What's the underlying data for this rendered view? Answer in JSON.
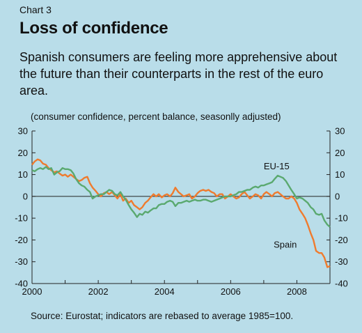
{
  "header": {
    "chart_number": "Chart 3",
    "title": "Loss of confidence",
    "subtitle": "Spanish consumers are feeling more apprehensive about the future than their counterparts in the rest of the euro area.",
    "units": "(consumer confidence, percent balance, seasonlly adjusted)"
  },
  "footer": {
    "source": "Source: Eurostat; indicators are rebased to average 1985=100."
  },
  "colors": {
    "background": "#b9dde9",
    "spain": "#ef7b2e",
    "eu15": "#5aa96f",
    "zero_line": "#222222"
  },
  "chart_data": {
    "type": "line",
    "title": "Loss of confidence",
    "xlabel": "",
    "ylabel": "",
    "xlim": [
      2000,
      2009
    ],
    "ylim": [
      -40,
      30
    ],
    "x_ticks": [
      2000,
      2002,
      2004,
      2006,
      2008
    ],
    "y_ticks": [
      30,
      20,
      10,
      0,
      -10,
      -20,
      -30,
      -40
    ],
    "grid": false,
    "legend": "inline labels",
    "series": [
      {
        "name": "Spain",
        "color": "#ef7b2e",
        "points": [
          [
            2000.0,
            14.5
          ],
          [
            2000.08,
            16
          ],
          [
            2000.17,
            17
          ],
          [
            2000.25,
            16.5
          ],
          [
            2000.33,
            15
          ],
          [
            2000.42,
            14.5
          ],
          [
            2000.5,
            13
          ],
          [
            2000.58,
            12
          ],
          [
            2000.67,
            11
          ],
          [
            2000.75,
            11.5
          ],
          [
            2000.83,
            10.5
          ],
          [
            2000.92,
            9.5
          ],
          [
            2001.0,
            10
          ],
          [
            2001.08,
            9
          ],
          [
            2001.17,
            10
          ],
          [
            2001.25,
            9
          ],
          [
            2001.33,
            8
          ],
          [
            2001.42,
            7
          ],
          [
            2001.5,
            7.5
          ],
          [
            2001.58,
            8.5
          ],
          [
            2001.67,
            9
          ],
          [
            2001.75,
            6
          ],
          [
            2001.83,
            4
          ],
          [
            2001.92,
            2.5
          ],
          [
            2002.0,
            1
          ],
          [
            2002.08,
            0
          ],
          [
            2002.17,
            1.5
          ],
          [
            2002.25,
            2
          ],
          [
            2002.33,
            1
          ],
          [
            2002.42,
            2
          ],
          [
            2002.5,
            0.5
          ],
          [
            2002.58,
            -1
          ],
          [
            2002.67,
            1
          ],
          [
            2002.75,
            -2
          ],
          [
            2002.83,
            -1
          ],
          [
            2002.92,
            -3
          ],
          [
            2003.0,
            -2
          ],
          [
            2003.08,
            -4
          ],
          [
            2003.17,
            -5
          ],
          [
            2003.25,
            -6
          ],
          [
            2003.33,
            -5
          ],
          [
            2003.42,
            -3
          ],
          [
            2003.5,
            -2
          ],
          [
            2003.58,
            -0.5
          ],
          [
            2003.67,
            1
          ],
          [
            2003.75,
            0
          ],
          [
            2003.83,
            1
          ],
          [
            2003.92,
            -0.5
          ],
          [
            2004.0,
            0.5
          ],
          [
            2004.08,
            1
          ],
          [
            2004.17,
            0
          ],
          [
            2004.25,
            1.5
          ],
          [
            2004.33,
            4
          ],
          [
            2004.42,
            2
          ],
          [
            2004.5,
            1
          ],
          [
            2004.58,
            0
          ],
          [
            2004.67,
            0.5
          ],
          [
            2004.75,
            1
          ],
          [
            2004.83,
            -1
          ],
          [
            2004.92,
            0
          ],
          [
            2005.0,
            1.5
          ],
          [
            2005.08,
            2.5
          ],
          [
            2005.17,
            3
          ],
          [
            2005.25,
            2.5
          ],
          [
            2005.33,
            3
          ],
          [
            2005.42,
            2
          ],
          [
            2005.5,
            1.5
          ],
          [
            2005.58,
            0
          ],
          [
            2005.67,
            1
          ],
          [
            2005.75,
            1
          ],
          [
            2005.83,
            -1
          ],
          [
            2005.92,
            0
          ],
          [
            2006.0,
            1
          ],
          [
            2006.08,
            0
          ],
          [
            2006.17,
            -1
          ],
          [
            2006.25,
            -0.5
          ],
          [
            2006.33,
            1
          ],
          [
            2006.42,
            2
          ],
          [
            2006.5,
            0.5
          ],
          [
            2006.58,
            -1
          ],
          [
            2006.67,
            0
          ],
          [
            2006.75,
            1
          ],
          [
            2006.83,
            0.5
          ],
          [
            2006.92,
            -1
          ],
          [
            2007.0,
            1
          ],
          [
            2007.08,
            2
          ],
          [
            2007.17,
            1
          ],
          [
            2007.25,
            0
          ],
          [
            2007.33,
            1.5
          ],
          [
            2007.42,
            2
          ],
          [
            2007.5,
            1
          ],
          [
            2007.58,
            0
          ],
          [
            2007.67,
            -1
          ],
          [
            2007.75,
            -1
          ],
          [
            2007.83,
            0
          ],
          [
            2007.92,
            -1
          ],
          [
            2008.0,
            -3
          ],
          [
            2008.08,
            -6
          ],
          [
            2008.17,
            -8
          ],
          [
            2008.25,
            -10
          ],
          [
            2008.33,
            -13
          ],
          [
            2008.42,
            -17
          ],
          [
            2008.5,
            -20
          ],
          [
            2008.58,
            -25
          ],
          [
            2008.67,
            -26
          ],
          [
            2008.75,
            -26
          ],
          [
            2008.83,
            -28
          ],
          [
            2008.92,
            -32.5
          ],
          [
            2009.0,
            -32
          ]
        ]
      },
      {
        "name": "EU-15",
        "color": "#5aa96f",
        "points": [
          [
            2000.0,
            12
          ],
          [
            2000.08,
            11.5
          ],
          [
            2000.17,
            12.5
          ],
          [
            2000.25,
            13
          ],
          [
            2000.33,
            12.5
          ],
          [
            2000.42,
            13.5
          ],
          [
            2000.5,
            12.5
          ],
          [
            2000.58,
            13
          ],
          [
            2000.67,
            10
          ],
          [
            2000.75,
            11
          ],
          [
            2000.83,
            11.5
          ],
          [
            2000.92,
            13
          ],
          [
            2001.0,
            12.5
          ],
          [
            2001.08,
            12.5
          ],
          [
            2001.17,
            12
          ],
          [
            2001.25,
            10.5
          ],
          [
            2001.33,
            8
          ],
          [
            2001.42,
            6
          ],
          [
            2001.5,
            5
          ],
          [
            2001.58,
            4.5
          ],
          [
            2001.67,
            3
          ],
          [
            2001.75,
            2
          ],
          [
            2001.83,
            -1
          ],
          [
            2001.92,
            0
          ],
          [
            2002.0,
            0.5
          ],
          [
            2002.08,
            1
          ],
          [
            2002.17,
            1
          ],
          [
            2002.25,
            2
          ],
          [
            2002.33,
            3
          ],
          [
            2002.42,
            2.5
          ],
          [
            2002.5,
            1
          ],
          [
            2002.58,
            0.5
          ],
          [
            2002.67,
            2
          ],
          [
            2002.75,
            0
          ],
          [
            2002.83,
            -1.5
          ],
          [
            2002.92,
            -4
          ],
          [
            2003.0,
            -6
          ],
          [
            2003.08,
            -7.5
          ],
          [
            2003.17,
            -9.5
          ],
          [
            2003.25,
            -8
          ],
          [
            2003.33,
            -8.5
          ],
          [
            2003.42,
            -7
          ],
          [
            2003.5,
            -7.5
          ],
          [
            2003.58,
            -6.5
          ],
          [
            2003.67,
            -5.5
          ],
          [
            2003.75,
            -5.5
          ],
          [
            2003.83,
            -4
          ],
          [
            2003.92,
            -3.5
          ],
          [
            2004.0,
            -3.5
          ],
          [
            2004.08,
            -2.5
          ],
          [
            2004.17,
            -2
          ],
          [
            2004.25,
            -2.5
          ],
          [
            2004.33,
            -4.5
          ],
          [
            2004.42,
            -3
          ],
          [
            2004.5,
            -3
          ],
          [
            2004.58,
            -2.5
          ],
          [
            2004.67,
            -2
          ],
          [
            2004.75,
            -2.5
          ],
          [
            2004.83,
            -2
          ],
          [
            2004.92,
            -1.5
          ],
          [
            2005.0,
            -2
          ],
          [
            2005.08,
            -2
          ],
          [
            2005.17,
            -1.5
          ],
          [
            2005.25,
            -1.5
          ],
          [
            2005.33,
            -2
          ],
          [
            2005.42,
            -2.5
          ],
          [
            2005.5,
            -2
          ],
          [
            2005.58,
            -1.5
          ],
          [
            2005.67,
            -1
          ],
          [
            2005.75,
            -0.5
          ],
          [
            2005.83,
            0
          ],
          [
            2005.92,
            0
          ],
          [
            2006.0,
            0
          ],
          [
            2006.08,
            0.5
          ],
          [
            2006.17,
            1
          ],
          [
            2006.25,
            2
          ],
          [
            2006.33,
            2
          ],
          [
            2006.42,
            2.5
          ],
          [
            2006.5,
            3
          ],
          [
            2006.58,
            3
          ],
          [
            2006.67,
            4
          ],
          [
            2006.75,
            4.5
          ],
          [
            2006.83,
            4
          ],
          [
            2006.92,
            5
          ],
          [
            2007.0,
            5
          ],
          [
            2007.08,
            5.5
          ],
          [
            2007.17,
            6
          ],
          [
            2007.25,
            6.5
          ],
          [
            2007.33,
            8
          ],
          [
            2007.42,
            9.5
          ],
          [
            2007.5,
            9
          ],
          [
            2007.58,
            8.5
          ],
          [
            2007.67,
            7
          ],
          [
            2007.75,
            5
          ],
          [
            2007.83,
            3
          ],
          [
            2007.92,
            1
          ],
          [
            2008.0,
            -1
          ],
          [
            2008.08,
            -0.5
          ],
          [
            2008.17,
            -1
          ],
          [
            2008.25,
            -2
          ],
          [
            2008.33,
            -3
          ],
          [
            2008.42,
            -5
          ],
          [
            2008.5,
            -6
          ],
          [
            2008.58,
            -8
          ],
          [
            2008.67,
            -8.5
          ],
          [
            2008.75,
            -8
          ],
          [
            2008.83,
            -11
          ],
          [
            2008.92,
            -13
          ],
          [
            2009.0,
            -14
          ]
        ]
      }
    ],
    "annotations": [
      {
        "text": "EU-15",
        "x": 2007.0,
        "y": 12.5
      },
      {
        "text": "Spain",
        "x": 2007.3,
        "y": -23.5
      }
    ]
  }
}
